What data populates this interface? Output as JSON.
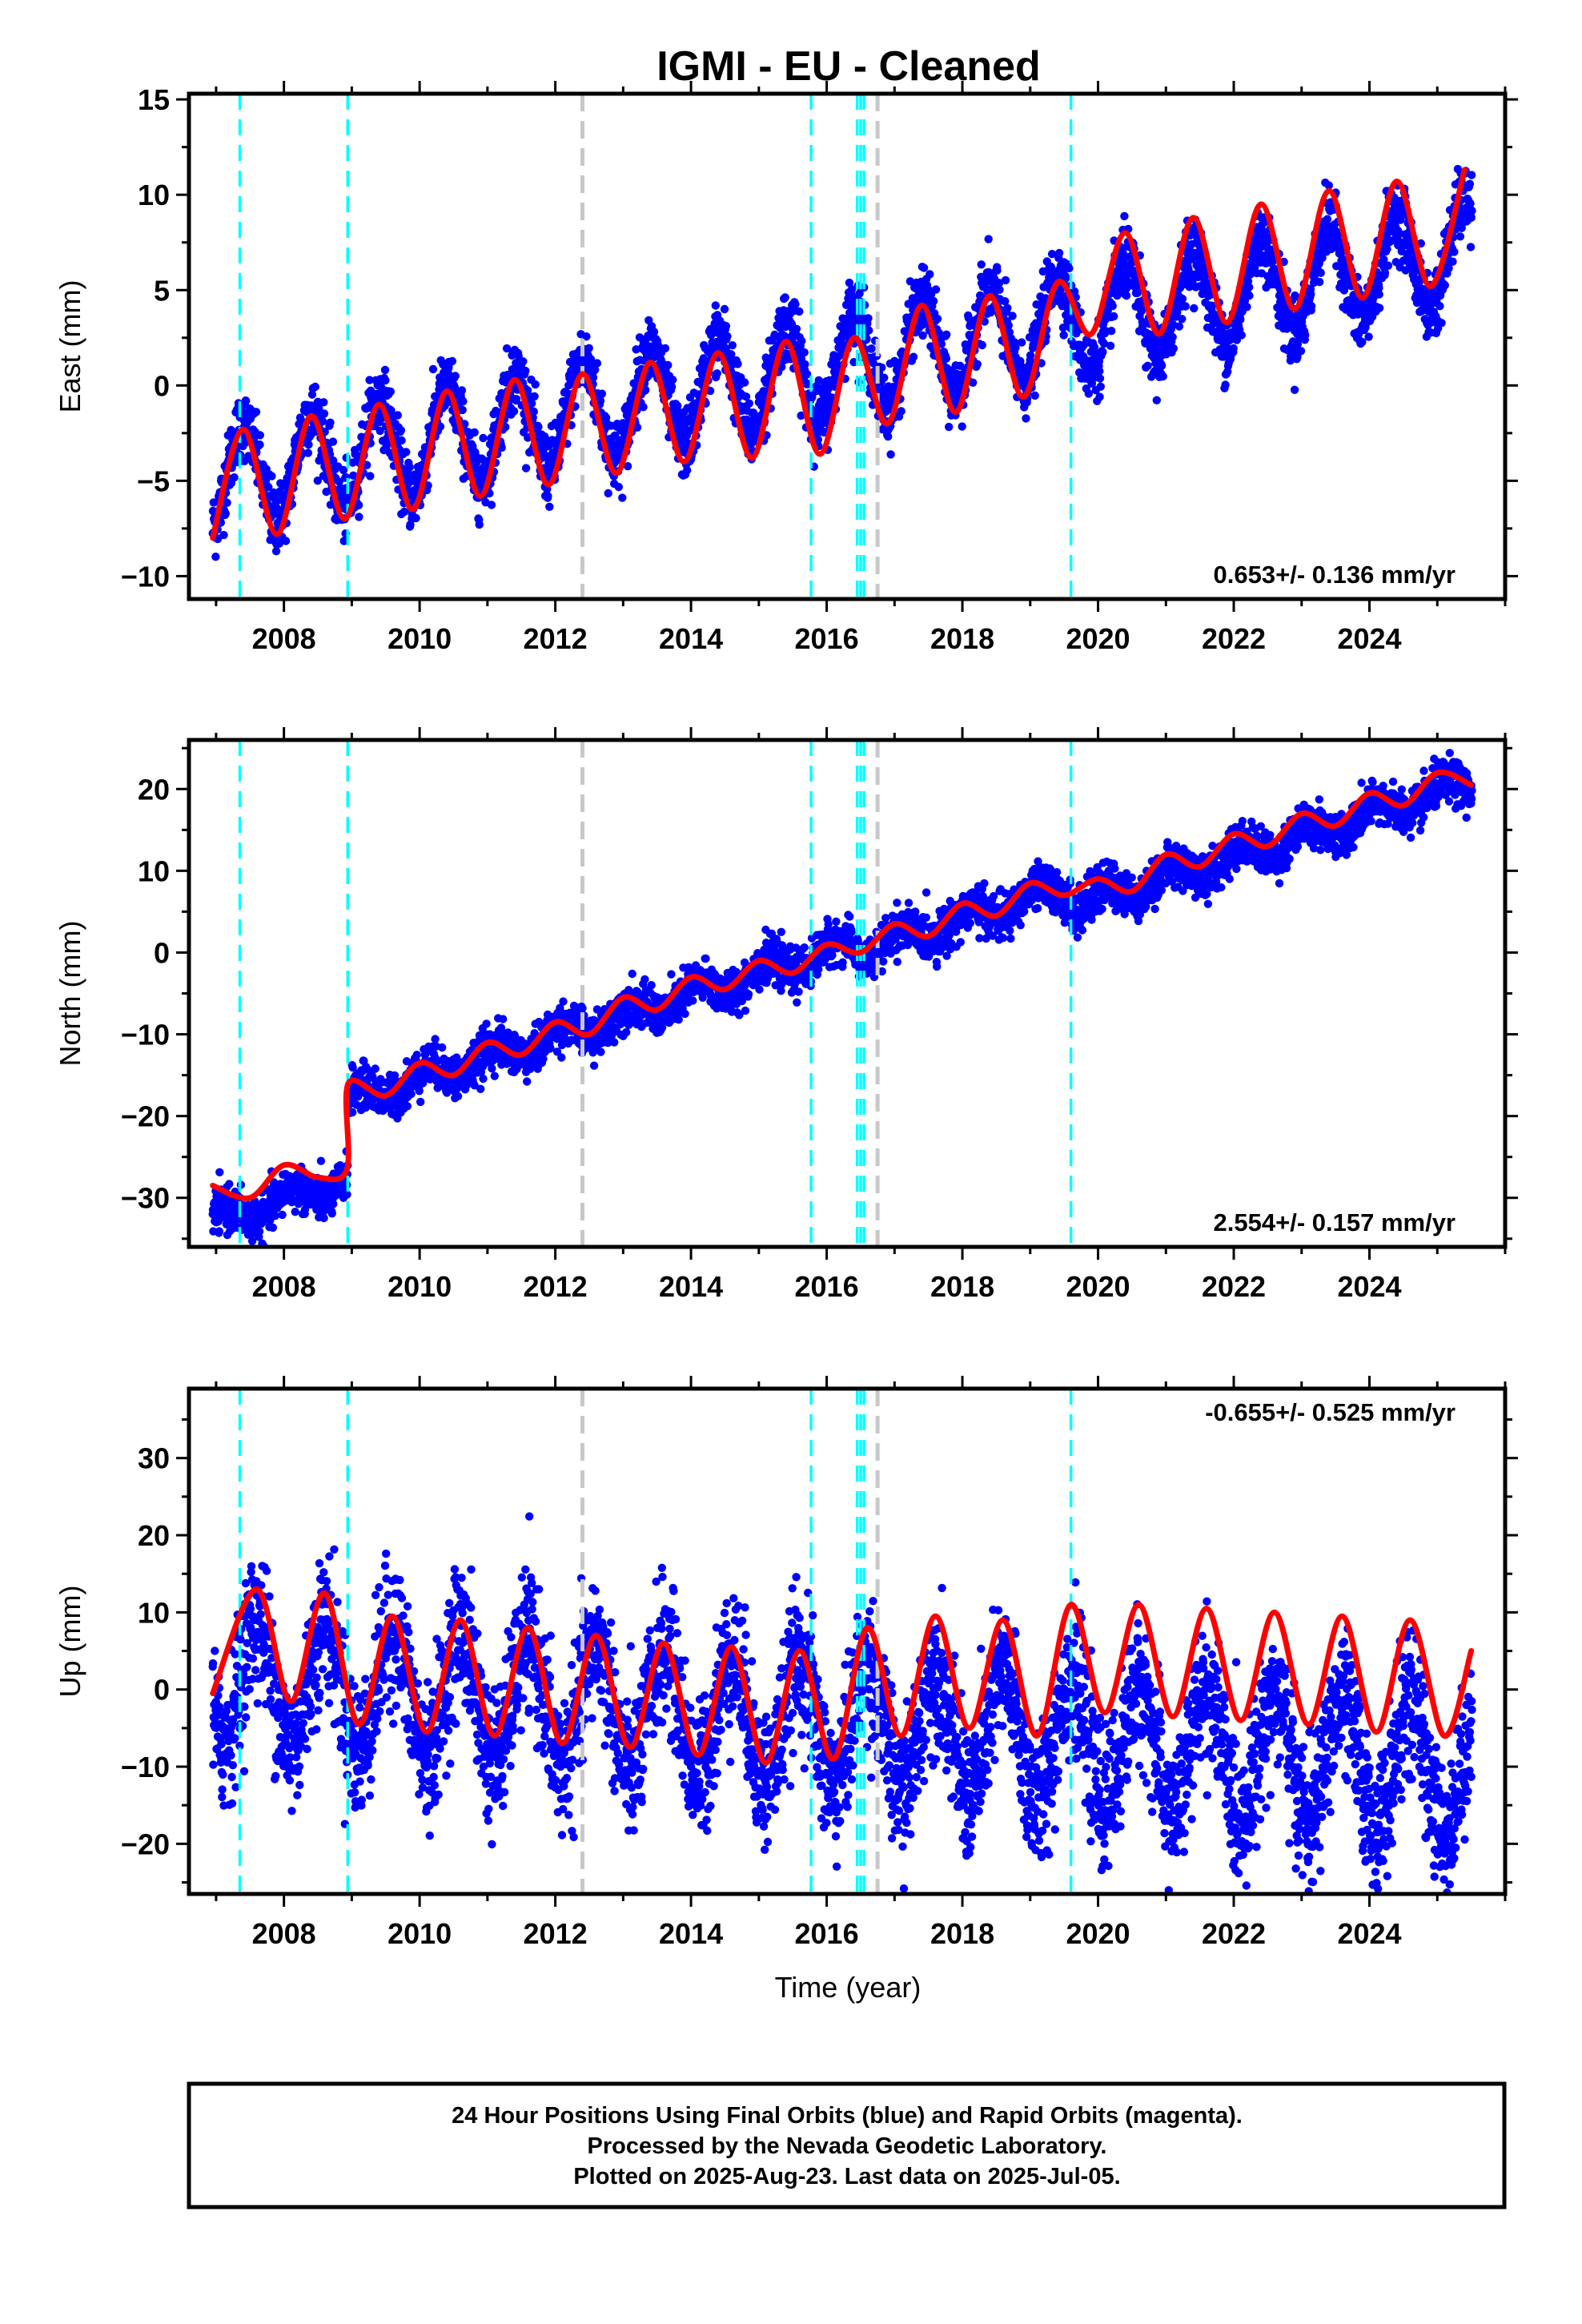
{
  "title": "IGMI  - EU - Cleaned",
  "xlabel": "Time (year)",
  "colors": {
    "points": "#0000ff",
    "fit": "#ff0000",
    "equipment_change": "#00ffff",
    "other_event": "#c8c8c8"
  },
  "chart_data": [
    {
      "type": "scatter",
      "ylabel": "East (mm)",
      "xlim": [
        2006.6,
        2026.0
      ],
      "ylim": [
        -11.2,
        15.3
      ],
      "xticks": [
        2008,
        2010,
        2012,
        2014,
        2016,
        2018,
        2020,
        2022,
        2024
      ],
      "yticks": [
        -10,
        -5,
        0,
        5,
        10,
        15
      ],
      "rate": "0.653+/- 0.136 mm/yr",
      "rate_position": "bottom-right",
      "model": {
        "start": 2006.95,
        "end": 2025.51,
        "offset": -5.0,
        "trend": 0.653,
        "amplitude": 2.6,
        "phase_peak": 0.4,
        "noise": 0.9,
        "steps": [
          {
            "t": 2016.48,
            "dy": 0.0
          },
          {
            "t": 2019.6,
            "dy": 0.0
          }
        ]
      },
      "fit_key_points": {
        "x": [
          2006.95,
          2007.4,
          2007.9,
          2008.4,
          2008.9,
          2009.4,
          2009.9,
          2010.4,
          2010.9,
          2011.4,
          2011.9,
          2012.4,
          2012.9,
          2013.4,
          2013.9,
          2014.4,
          2014.9,
          2015.4,
          2015.9,
          2016.4,
          2016.9,
          2017.4,
          2017.9,
          2018.4,
          2018.9,
          2019.4,
          2019.9,
          2020.4,
          2020.9,
          2021.4,
          2021.9,
          2022.4,
          2022.9,
          2023.4,
          2023.9,
          2024.4,
          2024.9,
          2025.4
        ],
        "y": [
          -8.0,
          -2.3,
          -7.8,
          -1.6,
          -7.0,
          -1.0,
          -6.5,
          -0.3,
          -5.8,
          0.3,
          -5.2,
          0.6,
          -4.6,
          1.2,
          -4.0,
          1.7,
          -3.8,
          2.3,
          -3.6,
          2.5,
          -2.0,
          4.2,
          -1.4,
          4.7,
          -0.6,
          5.4,
          2.7,
          8.0,
          2.7,
          8.8,
          3.3,
          9.5,
          4.0,
          10.2,
          4.6,
          10.7,
          5.2,
          11.3
        ]
      }
    },
    {
      "type": "scatter",
      "ylabel": "North (mm)",
      "xlim": [
        2006.6,
        2026.0
      ],
      "ylim": [
        -36.0,
        26.0
      ],
      "xticks": [
        2008,
        2010,
        2012,
        2014,
        2016,
        2018,
        2020,
        2022,
        2024
      ],
      "yticks": [
        -30,
        -20,
        -10,
        0,
        10,
        20
      ],
      "rate": "2.554+/- 0.157 mm/yr",
      "rate_position": "bottom-right",
      "model": {
        "start": 2006.95,
        "end": 2025.51,
        "offset": -33.0,
        "trend": 2.554,
        "amplitude": 1.3,
        "phase_peak": 0.1,
        "noise": 1.3,
        "steps": [
          {
            "t": 2008.94,
            "dy": 9.8
          },
          {
            "t": 2016.48,
            "dy": -1.0
          },
          {
            "t": 2019.6,
            "dy": -2.5
          }
        ]
      },
      "fit_key_points": {
        "x": [
          2006.95,
          2007.5,
          2008.0,
          2008.5,
          2008.93,
          2008.95,
          2009.5,
          2010.0,
          2010.5,
          2011.0,
          2011.5,
          2012.0,
          2012.5,
          2013.0,
          2013.5,
          2014.0,
          2014.5,
          2015.0,
          2015.5,
          2016.0,
          2016.5,
          2017.0,
          2017.5,
          2018.0,
          2018.5,
          2019.0,
          2019.5,
          2020.0,
          2020.5,
          2021.0,
          2021.5,
          2022.0,
          2022.5,
          2023.0,
          2023.5,
          2024.0,
          2024.5,
          2025.0,
          2025.5
        ],
        "y": [
          -28.5,
          -30.0,
          -26.0,
          -27.5,
          -26.5,
          -16.0,
          -17.5,
          -13.5,
          -15.0,
          -11.0,
          -12.5,
          -8.5,
          -10.0,
          -5.5,
          -7.0,
          -3.0,
          -4.5,
          -1.0,
          -2.5,
          1.0,
          0.0,
          3.5,
          2.0,
          6.0,
          4.5,
          8.5,
          7.0,
          9.0,
          7.5,
          12.0,
          10.5,
          14.5,
          13.0,
          17.0,
          15.5,
          19.5,
          18.0,
          22.0,
          20.5
        ]
      }
    },
    {
      "type": "scatter",
      "ylabel": "Up (mm)",
      "xlim": [
        2006.6,
        2026.0
      ],
      "ylim": [
        -26.5,
        39.0
      ],
      "xticks": [
        2008,
        2010,
        2012,
        2014,
        2016,
        2018,
        2020,
        2022,
        2024
      ],
      "yticks": [
        -20,
        -10,
        0,
        10,
        20,
        30
      ],
      "rate": "-0.655+/- 0.525 mm/yr",
      "rate_position": "top-right",
      "model": {
        "start": 2006.95,
        "end": 2025.51,
        "offset": 1.5,
        "trend": -0.655,
        "amplitude": 8.0,
        "phase_peak": 0.6,
        "noise": 4.5,
        "steps": [
          {
            "t": 2016.48,
            "dy": 0.0
          },
          {
            "t": 2019.6,
            "dy": 0.0
          }
        ]
      },
      "fit_key_points": {
        "x": [
          2006.95,
          2007.6,
          2008.1,
          2008.6,
          2009.1,
          2009.6,
          2010.1,
          2010.6,
          2011.1,
          2011.6,
          2012.1,
          2012.6,
          2013.1,
          2013.6,
          2014.1,
          2014.6,
          2015.1,
          2015.6,
          2016.1,
          2016.6,
          2017.1,
          2017.6,
          2018.1,
          2018.6,
          2019.1,
          2019.6,
          2020.1,
          2020.6,
          2021.1,
          2021.6,
          2022.1,
          2022.6,
          2023.1,
          2023.6,
          2024.1,
          2024.6,
          2025.1,
          2025.5
        ],
        "y": [
          -0.5,
          13.0,
          -1.5,
          12.5,
          -4.5,
          9.5,
          -5.5,
          9.0,
          -6.0,
          8.0,
          -7.0,
          7.0,
          -7.5,
          6.0,
          -8.5,
          5.5,
          -9.5,
          5.0,
          -9.0,
          8.0,
          -6.0,
          9.5,
          -5.0,
          9.0,
          -6.0,
          11.0,
          -3.0,
          11.0,
          -3.5,
          10.5,
          -4.0,
          10.0,
          -4.5,
          9.5,
          -5.5,
          9.0,
          -6.0,
          5.0
        ]
      }
    }
  ],
  "event_lines": {
    "equipment_change": [
      2007.35,
      2008.94,
      2015.77,
      2016.45,
      2016.5,
      2016.55,
      2019.6
    ],
    "other_event": [
      2012.4,
      2016.75
    ]
  },
  "footer": {
    "line1": "24 Hour Positions Using Final Orbits (blue) and Rapid Orbits (magenta).",
    "line2": "Processed by the Nevada Geodetic Laboratory.",
    "line3": "Plotted on 2025-Aug-23. Last data on 2025-Jul-05."
  }
}
